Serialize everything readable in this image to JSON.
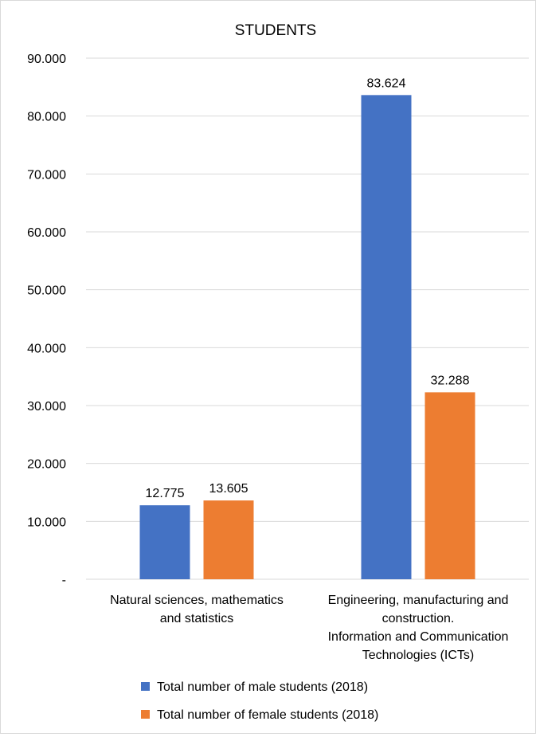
{
  "chart_data": {
    "type": "bar",
    "title": "STUDENTS",
    "categories": [
      [
        "Natural sciences, mathematics",
        "and statistics"
      ],
      [
        "Engineering, manufacturing and",
        "construction.",
        "Information and Communication",
        "Technologies (ICTs)"
      ]
    ],
    "series": [
      {
        "name": "Total number of male students (2018)",
        "values": [
          12775,
          83624
        ],
        "labels": [
          "12.775",
          "83.624"
        ],
        "color": "#4472C4"
      },
      {
        "name": "Total number of female students (2018)",
        "values": [
          13605,
          32288
        ],
        "labels": [
          "13.605",
          "32.288"
        ],
        "color": "#ED7D31"
      }
    ],
    "y_ticks": [
      {
        "value": 0,
        "label": "-"
      },
      {
        "value": 10000,
        "label": "10.000"
      },
      {
        "value": 20000,
        "label": "20.000"
      },
      {
        "value": 30000,
        "label": "30.000"
      },
      {
        "value": 40000,
        "label": "40.000"
      },
      {
        "value": 50000,
        "label": "50.000"
      },
      {
        "value": 60000,
        "label": "60.000"
      },
      {
        "value": 70000,
        "label": "70.000"
      },
      {
        "value": 80000,
        "label": "80.000"
      },
      {
        "value": 90000,
        "label": "90.000"
      }
    ],
    "ylim": [
      0,
      90000
    ],
    "grid": true,
    "legend_position": "bottom"
  }
}
